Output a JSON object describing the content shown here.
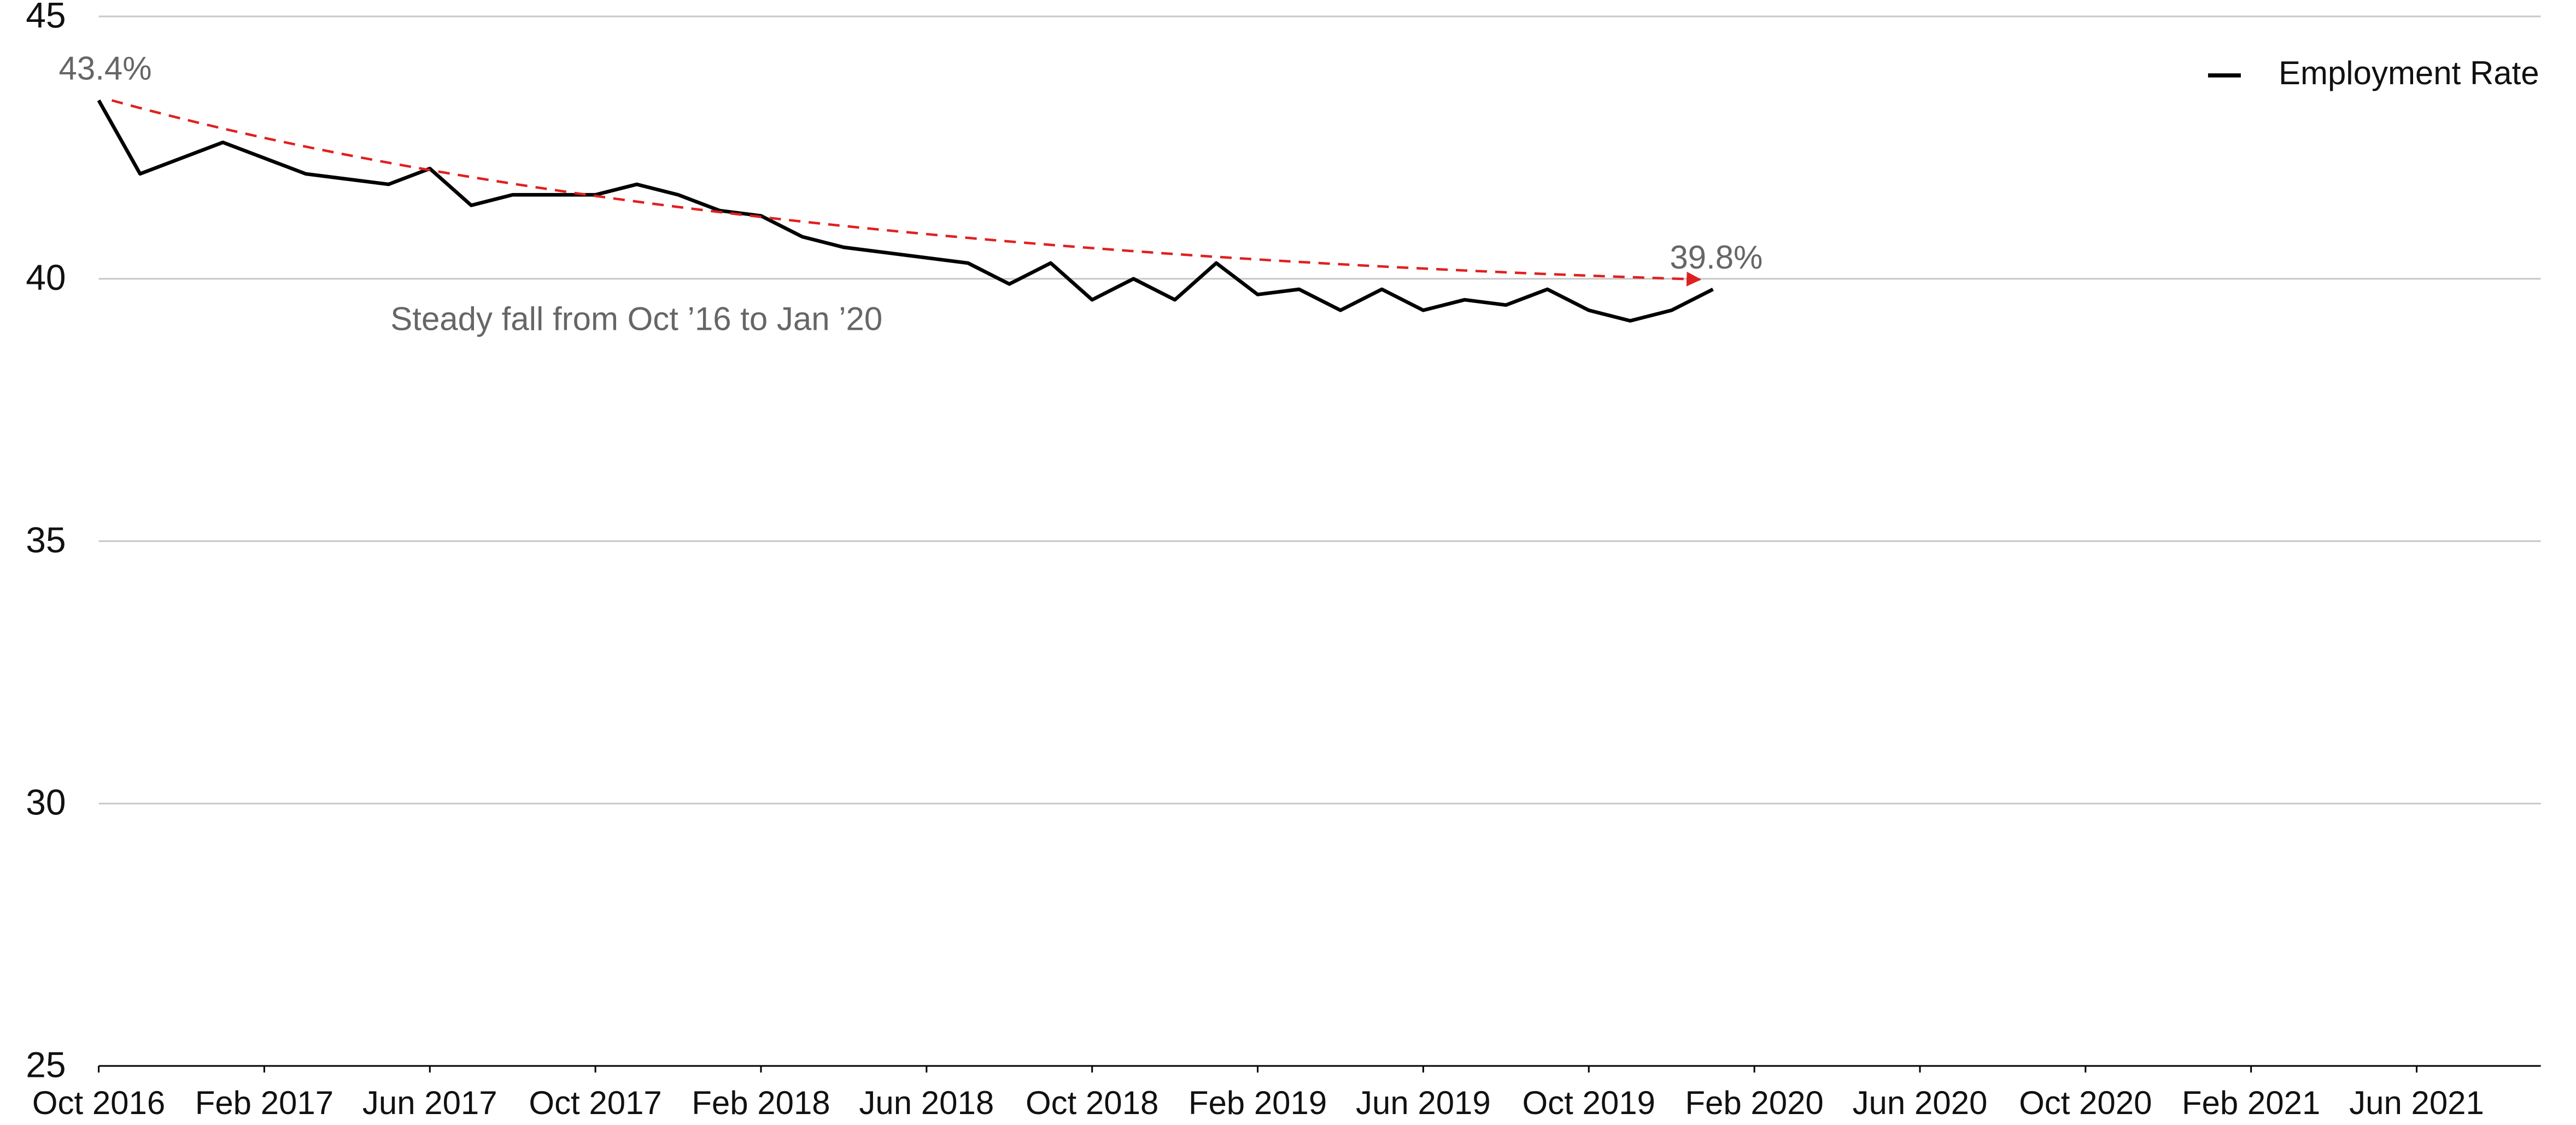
{
  "chart_data": {
    "type": "line",
    "x": [
      "2016-10",
      "2016-11",
      "2016-12",
      "2017-01",
      "2017-02",
      "2017-03",
      "2017-04",
      "2017-05",
      "2017-06",
      "2017-07",
      "2017-08",
      "2017-09",
      "2017-10",
      "2017-11",
      "2017-12",
      "2018-01",
      "2018-02",
      "2018-03",
      "2018-04",
      "2018-05",
      "2018-06",
      "2018-07",
      "2018-08",
      "2018-09",
      "2018-10",
      "2018-11",
      "2018-12",
      "2019-01",
      "2019-02",
      "2019-03",
      "2019-04",
      "2019-05",
      "2019-06",
      "2019-07",
      "2019-08",
      "2019-09",
      "2019-10",
      "2019-11",
      "2019-12",
      "2020-01"
    ],
    "series": [
      {
        "name": "Employment Rate",
        "color": "#000000",
        "values": [
          43.4,
          42.0,
          42.3,
          42.6,
          42.3,
          42.0,
          41.9,
          41.8,
          42.1,
          41.4,
          41.6,
          41.6,
          41.6,
          41.8,
          41.6,
          41.3,
          41.2,
          40.8,
          40.6,
          40.5,
          40.4,
          40.3,
          39.9,
          40.3,
          39.6,
          40.0,
          39.6,
          40.3,
          39.7,
          39.8,
          39.4,
          39.8,
          39.4,
          39.6,
          39.5,
          39.8,
          39.4,
          39.2,
          39.4,
          39.8
        ],
        "value_labels": [
          "43.4%",
          null,
          null,
          null,
          null,
          null,
          null,
          null,
          null,
          null,
          null,
          null,
          null,
          null,
          null,
          null,
          null,
          null,
          null,
          null,
          null,
          null,
          null,
          null,
          null,
          null,
          null,
          null,
          null,
          null,
          null,
          null,
          null,
          null,
          null,
          null,
          null,
          null,
          null,
          "39.8%"
        ]
      }
    ],
    "xlim": [
      "2016-10",
      "2021-09"
    ],
    "xticks": [
      {
        "value": "2016-10",
        "label": "Oct 2016"
      },
      {
        "value": "2017-02",
        "label": "Feb 2017"
      },
      {
        "value": "2017-06",
        "label": "Jun 2017"
      },
      {
        "value": "2017-10",
        "label": "Oct 2017"
      },
      {
        "value": "2018-02",
        "label": "Feb 2018"
      },
      {
        "value": "2018-06",
        "label": "Jun 2018"
      },
      {
        "value": "2018-10",
        "label": "Oct 2018"
      },
      {
        "value": "2019-02",
        "label": "Feb 2019"
      },
      {
        "value": "2019-06",
        "label": "Jun 2019"
      },
      {
        "value": "2019-10",
        "label": "Oct 2019"
      },
      {
        "value": "2020-02",
        "label": "Feb 2020"
      },
      {
        "value": "2020-06",
        "label": "Jun 2020"
      },
      {
        "value": "2020-10",
        "label": "Oct 2020"
      },
      {
        "value": "2021-02",
        "label": "Feb 2021"
      },
      {
        "value": "2021-06",
        "label": "Jun 2021"
      }
    ],
    "ylim": [
      25,
      45
    ],
    "yticks": [
      25,
      30,
      35,
      40,
      45
    ],
    "grid": true,
    "legend": "top-right",
    "annotations": [
      {
        "text": "Steady fall from Oct ’16 to Jan ’20",
        "color": "#e02020"
      }
    ]
  }
}
